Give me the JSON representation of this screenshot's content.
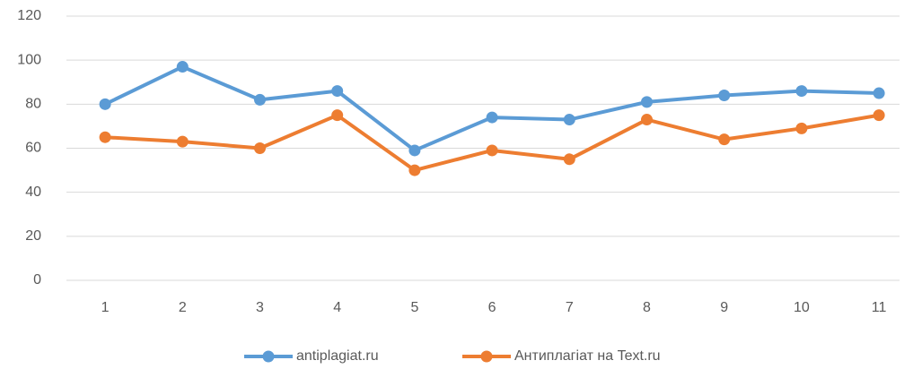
{
  "chart_data": {
    "type": "line",
    "categories": [
      "1",
      "2",
      "3",
      "4",
      "5",
      "6",
      "7",
      "8",
      "9",
      "10",
      "11"
    ],
    "series": [
      {
        "name": "antiplagiat.ru",
        "color": "#5b9bd5",
        "values": [
          80,
          97,
          82,
          86,
          59,
          74,
          73,
          81,
          84,
          86,
          85
        ]
      },
      {
        "name": "Антиплагіат на Text.ru",
        "color": "#ed7d31",
        "values": [
          65,
          63,
          60,
          75,
          50,
          59,
          55,
          73,
          64,
          69,
          75
        ]
      }
    ],
    "ylim": [
      0,
      120
    ],
    "yticks": [
      0,
      20,
      40,
      60,
      80,
      100,
      120
    ],
    "grid": true,
    "legend": "bottom"
  }
}
